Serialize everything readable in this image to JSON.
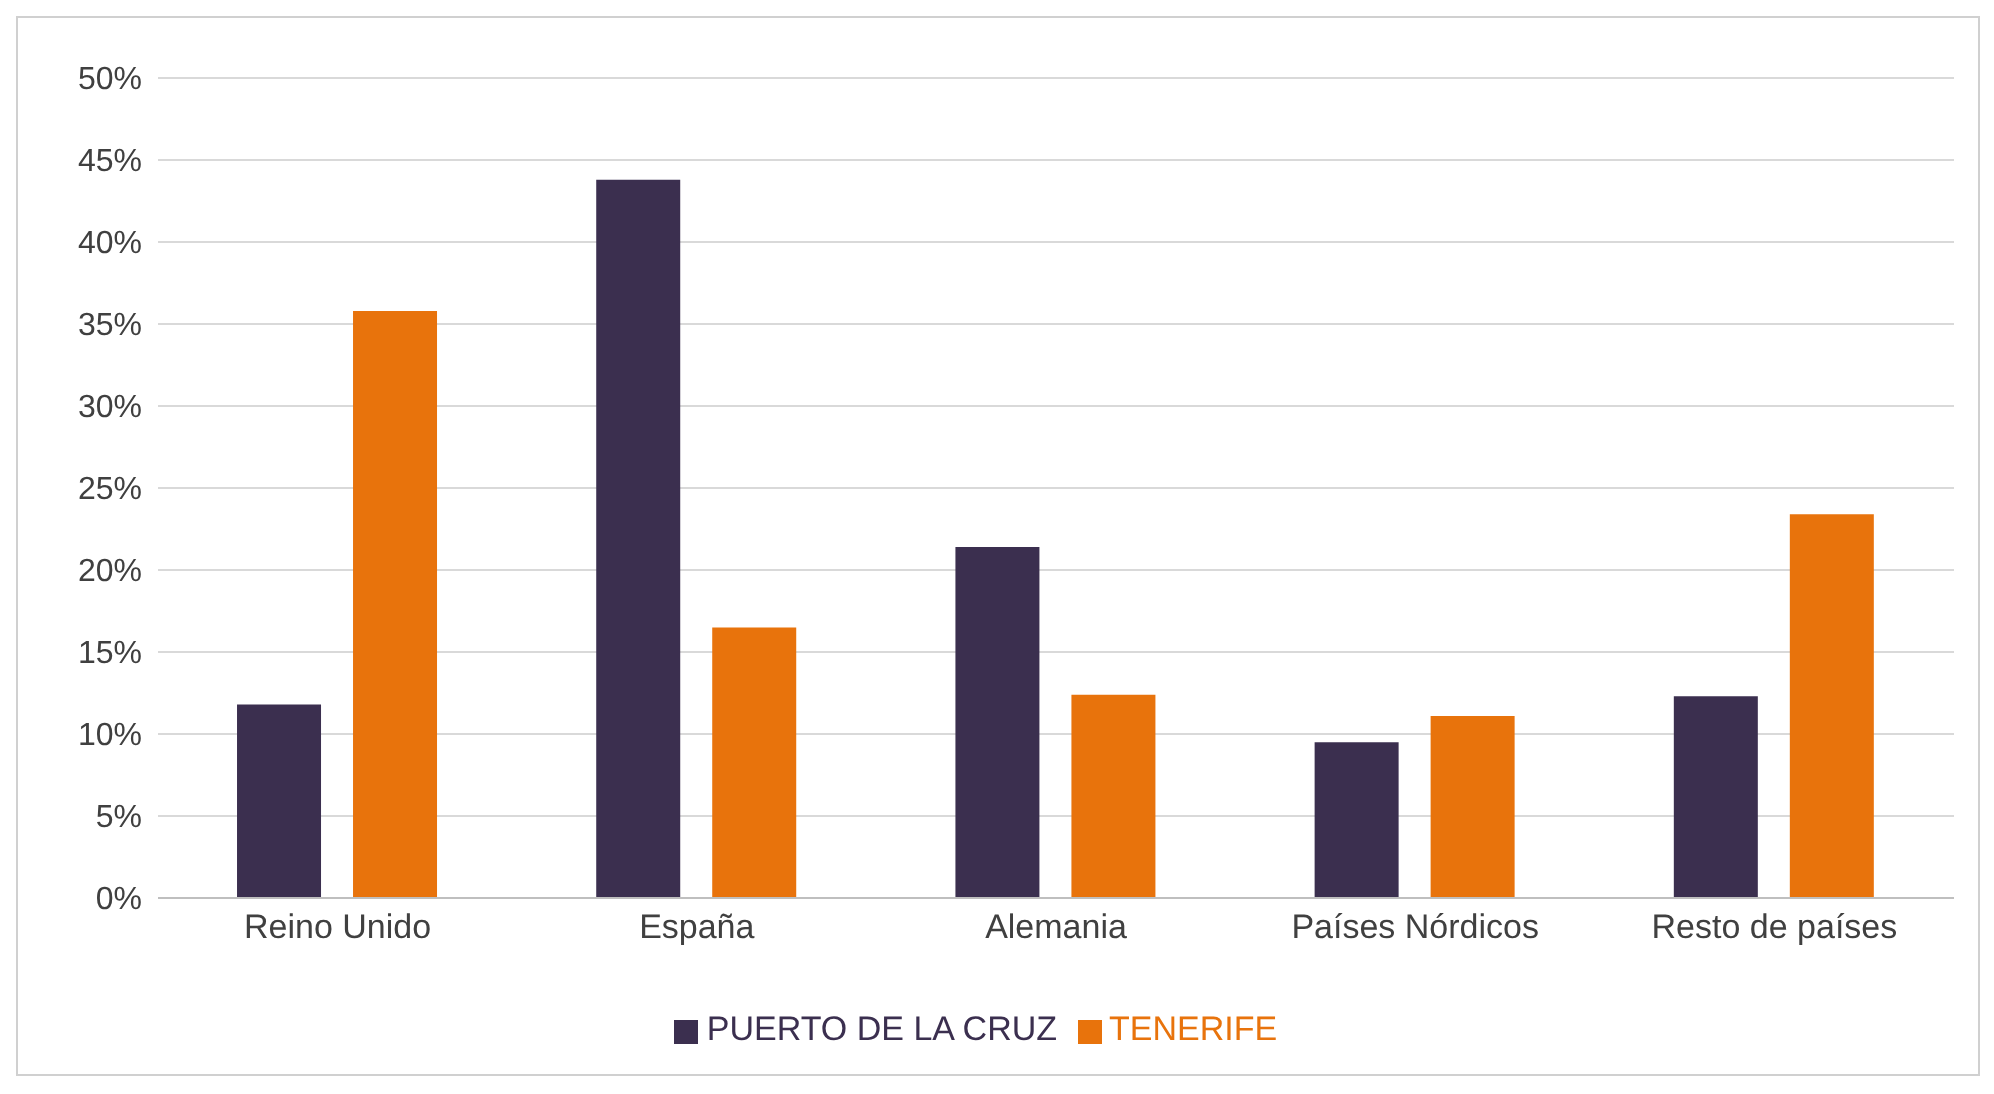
{
  "chart_data": {
    "type": "bar",
    "categories": [
      "Reino Unido",
      "España",
      "Alemania",
      "Países Nórdicos",
      "Resto de países"
    ],
    "series": [
      {
        "name": "PUERTO DE LA CRUZ",
        "color": "#3b2f4f",
        "values": [
          11.8,
          43.8,
          21.4,
          9.5,
          12.3
        ]
      },
      {
        "name": "TENERIFE",
        "color": "#e8730c",
        "values": [
          35.8,
          16.5,
          12.4,
          11.1,
          23.4
        ]
      }
    ],
    "ylim": [
      0,
      50
    ],
    "yticks": [
      {
        "value": 0,
        "label": "0%"
      },
      {
        "value": 5,
        "label": "5%"
      },
      {
        "value": 10,
        "label": "10%"
      },
      {
        "value": 15,
        "label": "15%"
      },
      {
        "value": 20,
        "label": "20%"
      },
      {
        "value": 25,
        "label": "25%"
      },
      {
        "value": 30,
        "label": "30%"
      },
      {
        "value": 35,
        "label": "35%"
      },
      {
        "value": 40,
        "label": "40%"
      },
      {
        "value": 45,
        "label": "45%"
      },
      {
        "value": 50,
        "label": "50%"
      }
    ],
    "grid": "y",
    "legend": "bottom"
  }
}
